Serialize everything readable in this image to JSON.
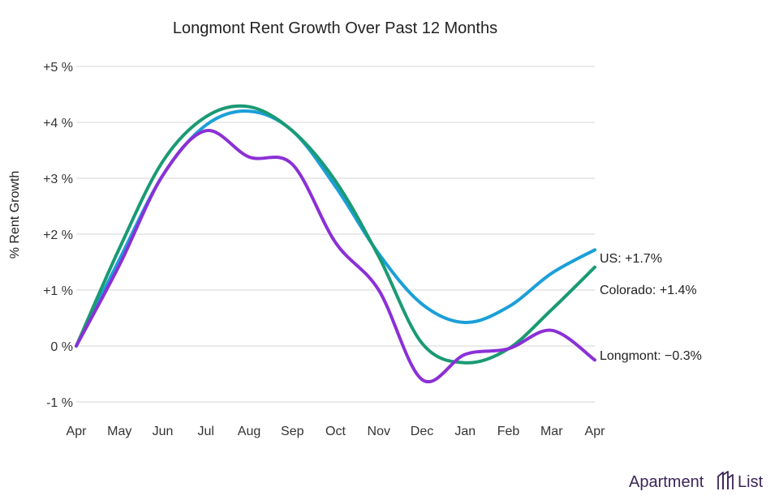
{
  "chart_data": {
    "type": "line",
    "title": "Longmont Rent Growth Over Past 12 Months",
    "xlabel": "",
    "ylabel": "% Rent Growth",
    "categories": [
      "Apr",
      "May",
      "Jun",
      "Jul",
      "Aug",
      "Sep",
      "Oct",
      "Nov",
      "Dec",
      "Jan",
      "Feb",
      "Mar",
      "Apr"
    ],
    "ylim": [
      -1,
      5
    ],
    "yticks": [
      {
        "value": 5,
        "label": "+5 %"
      },
      {
        "value": 4,
        "label": "+4 %"
      },
      {
        "value": 3,
        "label": "+3 %"
      },
      {
        "value": 2,
        "label": "+2 %"
      },
      {
        "value": 1,
        "label": "+1 %"
      },
      {
        "value": 0,
        "label": "0 %"
      },
      {
        "value": -1,
        "label": "-1 %"
      }
    ],
    "grid": true,
    "series": [
      {
        "name": "US",
        "label": "US: +1.7%",
        "color": "#1b9fd8",
        "values": [
          0.0,
          1.55,
          3.05,
          3.95,
          4.2,
          3.85,
          2.85,
          1.65,
          0.75,
          0.42,
          0.7,
          1.3,
          1.72
        ]
      },
      {
        "name": "Colorado",
        "label": "Colorado: +1.4%",
        "color": "#1a9a74",
        "values": [
          0.0,
          1.75,
          3.3,
          4.1,
          4.28,
          3.85,
          2.95,
          1.6,
          0.05,
          -0.3,
          -0.05,
          0.65,
          1.41
        ]
      },
      {
        "name": "Longmont",
        "label": "Longmont: −0.3%",
        "color": "#8b30d6",
        "values": [
          0.0,
          1.45,
          3.05,
          3.85,
          3.38,
          3.25,
          1.85,
          1.0,
          -0.6,
          -0.15,
          -0.05,
          0.28,
          -0.25
        ]
      }
    ]
  },
  "brand": {
    "name_left": "Apartment",
    "name_right": "List",
    "color": "#3d2558"
  }
}
